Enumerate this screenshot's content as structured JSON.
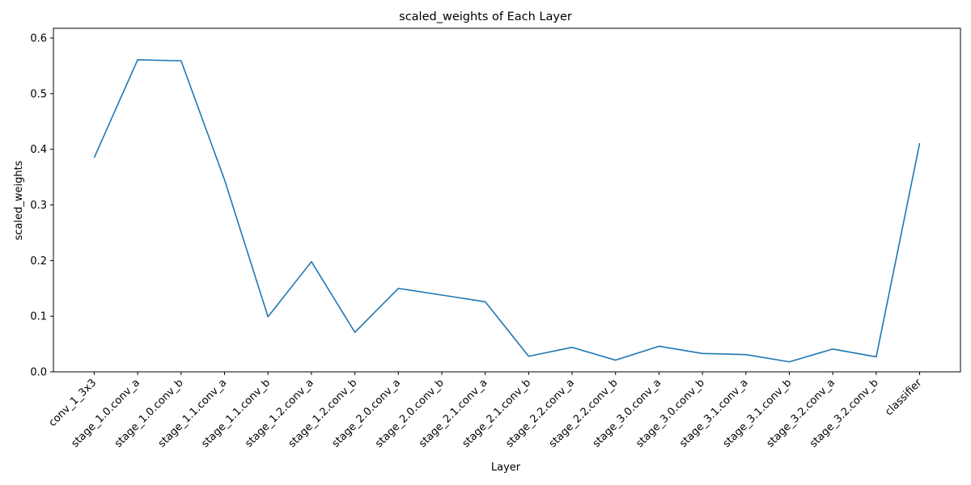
{
  "chart_data": {
    "type": "line",
    "title": "scaled_weights of Each Layer",
    "xlabel": "Layer",
    "ylabel": "scaled_weights",
    "categories": [
      "conv_1_3x3",
      "stage_1.0.conv_a",
      "stage_1.0.conv_b",
      "stage_1.1.conv_a",
      "stage_1.1.conv_b",
      "stage_1.2.conv_a",
      "stage_1.2.conv_b",
      "stage_2.0.conv_a",
      "stage_2.0.conv_b",
      "stage_2.1.conv_a",
      "stage_2.1.conv_b",
      "stage_2.2.conv_a",
      "stage_2.2.conv_b",
      "stage_3.0.conv_a",
      "stage_3.0.conv_b",
      "stage_3.1.conv_a",
      "stage_3.1.conv_b",
      "stage_3.2.conv_a",
      "stage_3.2.conv_b",
      "classifier"
    ],
    "series": [
      {
        "values": [
          0.385,
          0.561,
          0.559,
          0.345,
          0.099,
          0.198,
          0.071,
          0.15,
          0.138,
          0.126,
          0.028,
          0.044,
          0.021,
          0.046,
          0.033,
          0.031,
          0.018,
          0.041,
          0.027,
          0.411
        ],
        "color": "#1f77b4"
      }
    ],
    "ylim": [
      0,
      0.6175
    ],
    "yticks": [
      0.0,
      0.1,
      0.2,
      0.3,
      0.4,
      0.5,
      0.6
    ],
    "ytick_labels": [
      "0.0",
      "0.1",
      "0.2",
      "0.3",
      "0.4",
      "0.5",
      "0.6"
    ],
    "grid": false,
    "legend": "none"
  }
}
